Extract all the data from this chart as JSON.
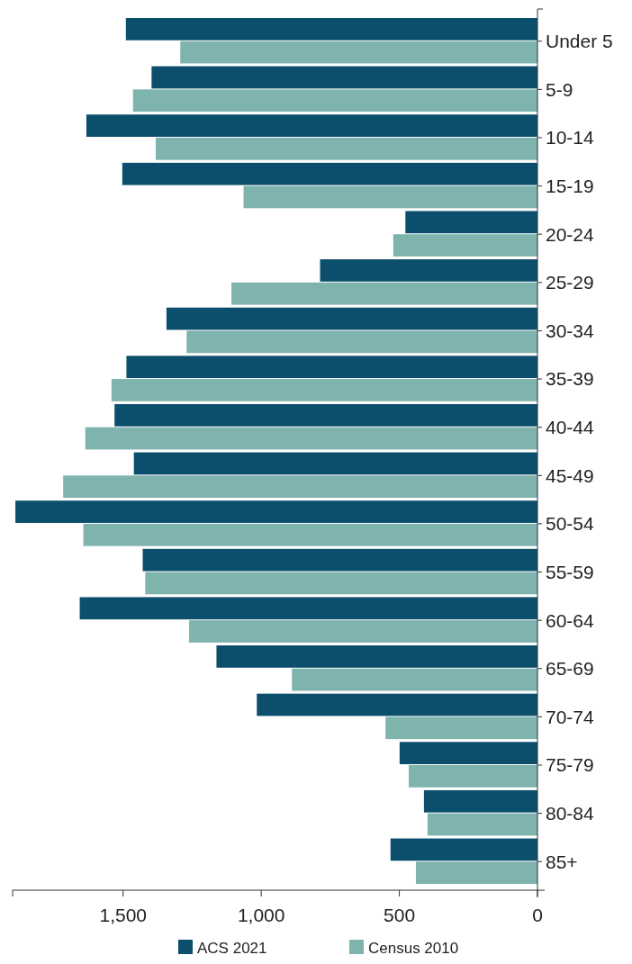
{
  "chart_data": {
    "type": "bar",
    "orientation": "horizontal",
    "categories": [
      "Under 5",
      "5-9",
      "10-14",
      "15-19",
      "20-24",
      "25-29",
      "30-34",
      "35-39",
      "40-44",
      "45-49",
      "50-54",
      "55-59",
      "60-64",
      "65-69",
      "70-74",
      "75-79",
      "80-84",
      "85+"
    ],
    "series": [
      {
        "name": "ACS 2021",
        "color": "#0b4f6c",
        "values": [
          1490,
          1397,
          1633,
          1503,
          478,
          787,
          1343,
          1488,
          1531,
          1461,
          1890,
          1429,
          1657,
          1162,
          1016,
          499,
          411,
          532
        ]
      },
      {
        "name": "Census 2010",
        "color": "#7fb3ae",
        "values": [
          1293,
          1464,
          1382,
          1064,
          522,
          1108,
          1270,
          1542,
          1637,
          1717,
          1644,
          1420,
          1261,
          889,
          550,
          466,
          398,
          440
        ]
      }
    ],
    "xlim": [
      1900,
      0
    ],
    "xticks": [
      {
        "value": 1500,
        "label": "1,500"
      },
      {
        "value": 1000,
        "label": "1,000"
      },
      500,
      0
    ],
    "grid": false,
    "legend": "bottom"
  }
}
